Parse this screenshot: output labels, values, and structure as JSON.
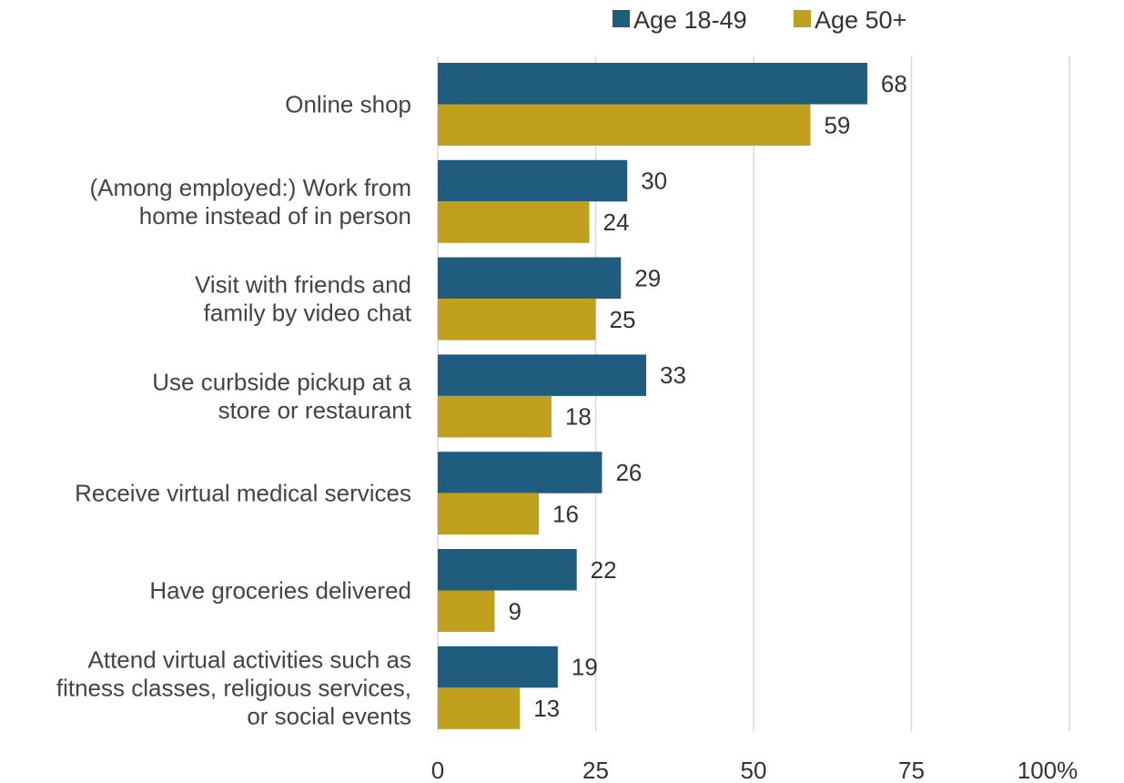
{
  "chart_data": {
    "type": "bar",
    "orientation": "horizontal",
    "categories": [
      [
        "Online shop"
      ],
      [
        "(Among employed:) Work from",
        "home instead of in person"
      ],
      [
        "Visit with friends and",
        "family by video chat"
      ],
      [
        "Use curbside pickup at a",
        "store or restaurant"
      ],
      [
        "Receive virtual medical services"
      ],
      [
        "Have groceries delivered"
      ],
      [
        "Attend virtual activities such as",
        "fitness classes, religious services,",
        "or social events"
      ]
    ],
    "series": [
      {
        "name": "Age 18-49",
        "color": "#1f5c7e",
        "values": [
          68,
          30,
          29,
          33,
          26,
          22,
          19
        ]
      },
      {
        "name": "Age 50+",
        "color": "#c1a01e",
        "values": [
          59,
          24,
          25,
          18,
          16,
          9,
          13
        ]
      }
    ],
    "xlim": [
      0,
      100
    ],
    "ticks": [
      0,
      25,
      50,
      75,
      100
    ],
    "tick_labels": [
      "0",
      "25",
      "50",
      "75",
      "100%"
    ],
    "grid": true,
    "legend_position": "top-right"
  }
}
